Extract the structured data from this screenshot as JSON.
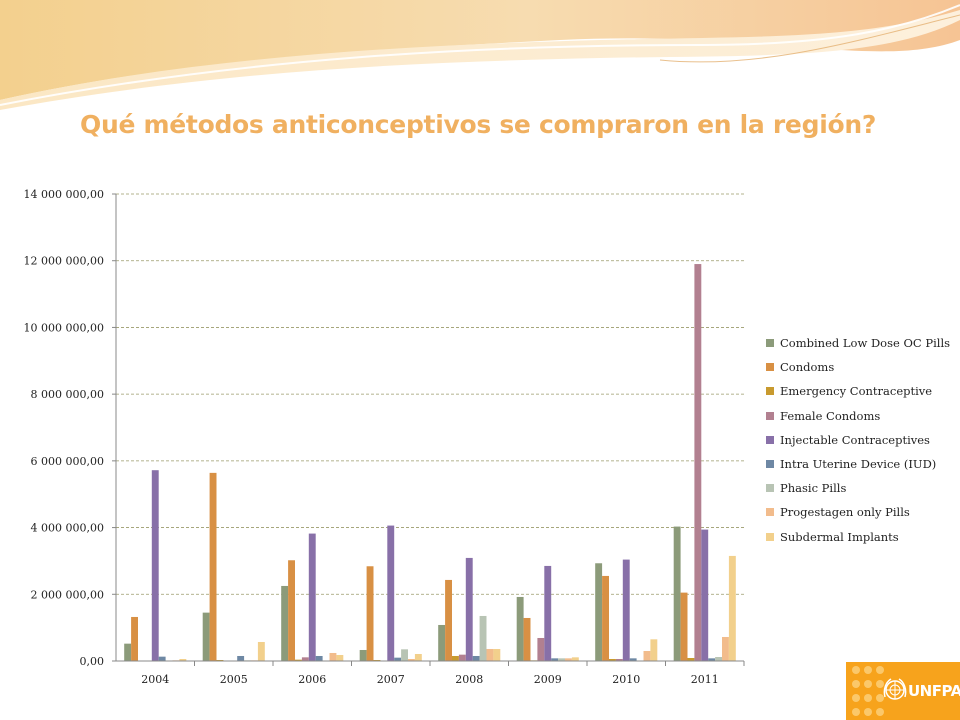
{
  "slide": {
    "title": "Qué métodos anticonceptivos se compraron en la región?",
    "title_color": "#f0b060"
  },
  "chart_data": {
    "type": "bar",
    "title": "",
    "xlabel": "",
    "ylabel": "",
    "ylim": [
      0,
      14000000
    ],
    "yticks": [
      0,
      2000000,
      4000000,
      6000000,
      8000000,
      10000000,
      12000000,
      14000000
    ],
    "ytick_labels": [
      "0,00",
      "2 000 000,00",
      "4 000 000,00",
      "6 000 000,00",
      "8 000 000,00",
      "10 000 000,00",
      "12 000 000,00",
      "14 000 000,00"
    ],
    "grid": true,
    "legend_position": "right",
    "categories": [
      "2004",
      "2005",
      "2006",
      "2007",
      "2008",
      "2009",
      "2010",
      "2011"
    ],
    "series": [
      {
        "name": "Combined Low Dose OC Pills",
        "color": "#8c9b7a",
        "values": [
          520000,
          1450000,
          2250000,
          330000,
          1080000,
          1920000,
          2930000,
          4030000
        ]
      },
      {
        "name": "Condoms",
        "color": "#d89044",
        "values": [
          1320000,
          5640000,
          3020000,
          2840000,
          2430000,
          1290000,
          2550000,
          2050000
        ]
      },
      {
        "name": "Emergency Contraceptive",
        "color": "#c89a2e",
        "values": [
          10000,
          30000,
          40000,
          30000,
          150000,
          20000,
          60000,
          90000
        ]
      },
      {
        "name": "Female Condoms",
        "color": "#b28090",
        "values": [
          0,
          0,
          110000,
          0,
          190000,
          690000,
          60000,
          11900000
        ]
      },
      {
        "name": "Injectable Contraceptives",
        "color": "#8870a8",
        "values": [
          5720000,
          0,
          3820000,
          4060000,
          3090000,
          2850000,
          3040000,
          3940000
        ]
      },
      {
        "name": "Intra Uterine Device (IUD)",
        "color": "#6e88a4",
        "values": [
          130000,
          150000,
          150000,
          100000,
          150000,
          80000,
          80000,
          80000
        ]
      },
      {
        "name": "Phasic Pills",
        "color": "#b8c4b4",
        "values": [
          0,
          20000,
          0,
          350000,
          1350000,
          80000,
          0,
          120000
        ]
      },
      {
        "name": "Progestagen only Pills",
        "color": "#f2bc8c",
        "values": [
          20000,
          20000,
          240000,
          60000,
          360000,
          80000,
          300000,
          720000
        ]
      },
      {
        "name": "Subdermal Implants",
        "color": "#f2d08c",
        "values": [
          60000,
          570000,
          180000,
          210000,
          360000,
          110000,
          650000,
          3150000
        ]
      }
    ]
  },
  "logo": {
    "text": "UNFPA",
    "background": "#f7a31c"
  }
}
